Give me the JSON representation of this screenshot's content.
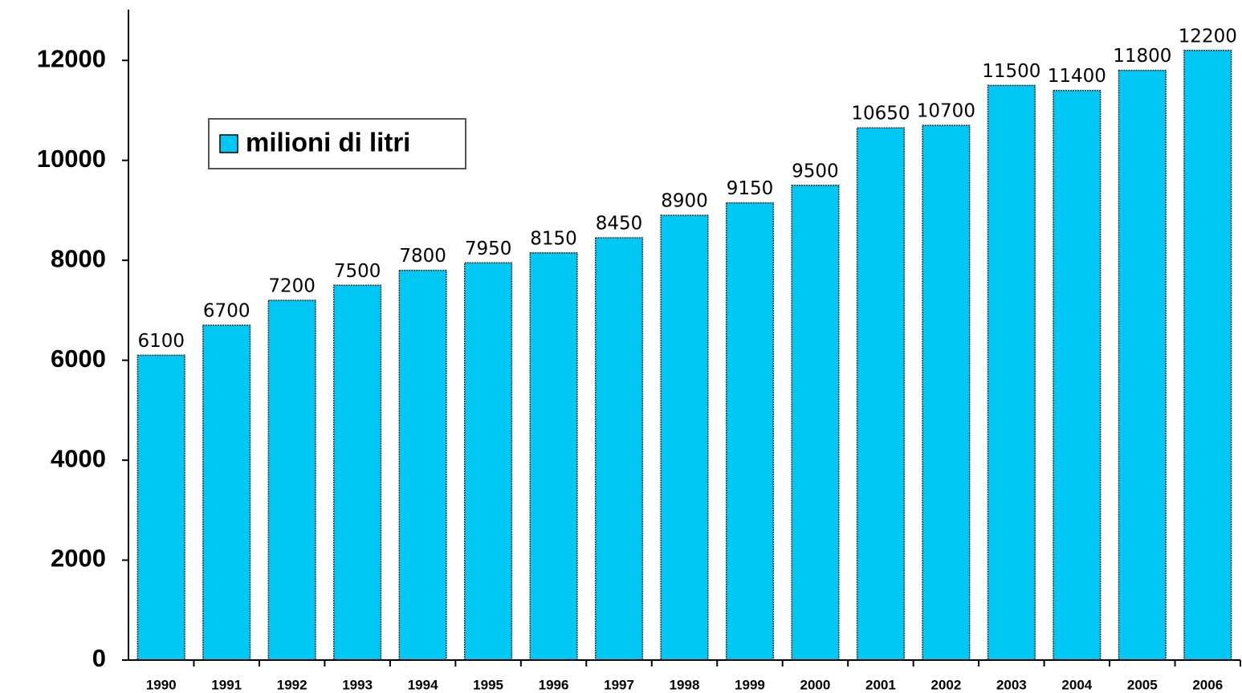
{
  "chart_data": {
    "type": "bar",
    "categories": [
      "1990",
      "1991",
      "1992",
      "1993",
      "1994",
      "1995",
      "1996",
      "1997",
      "1998",
      "1999",
      "2000",
      "2001",
      "2002",
      "2003",
      "2004",
      "2005",
      "2006"
    ],
    "series": [
      {
        "name": "milioni di litri",
        "color": "#00c8f5",
        "values": [
          6100,
          6700,
          7200,
          7500,
          7800,
          7950,
          8150,
          8450,
          8900,
          9150,
          9500,
          10650,
          10700,
          11500,
          11400,
          11800,
          12200
        ]
      }
    ],
    "ylim": [
      0,
      13000
    ],
    "yticks": [
      0,
      2000,
      4000,
      6000,
      8000,
      10000,
      12000
    ],
    "grid": false,
    "legend": "upper left"
  }
}
